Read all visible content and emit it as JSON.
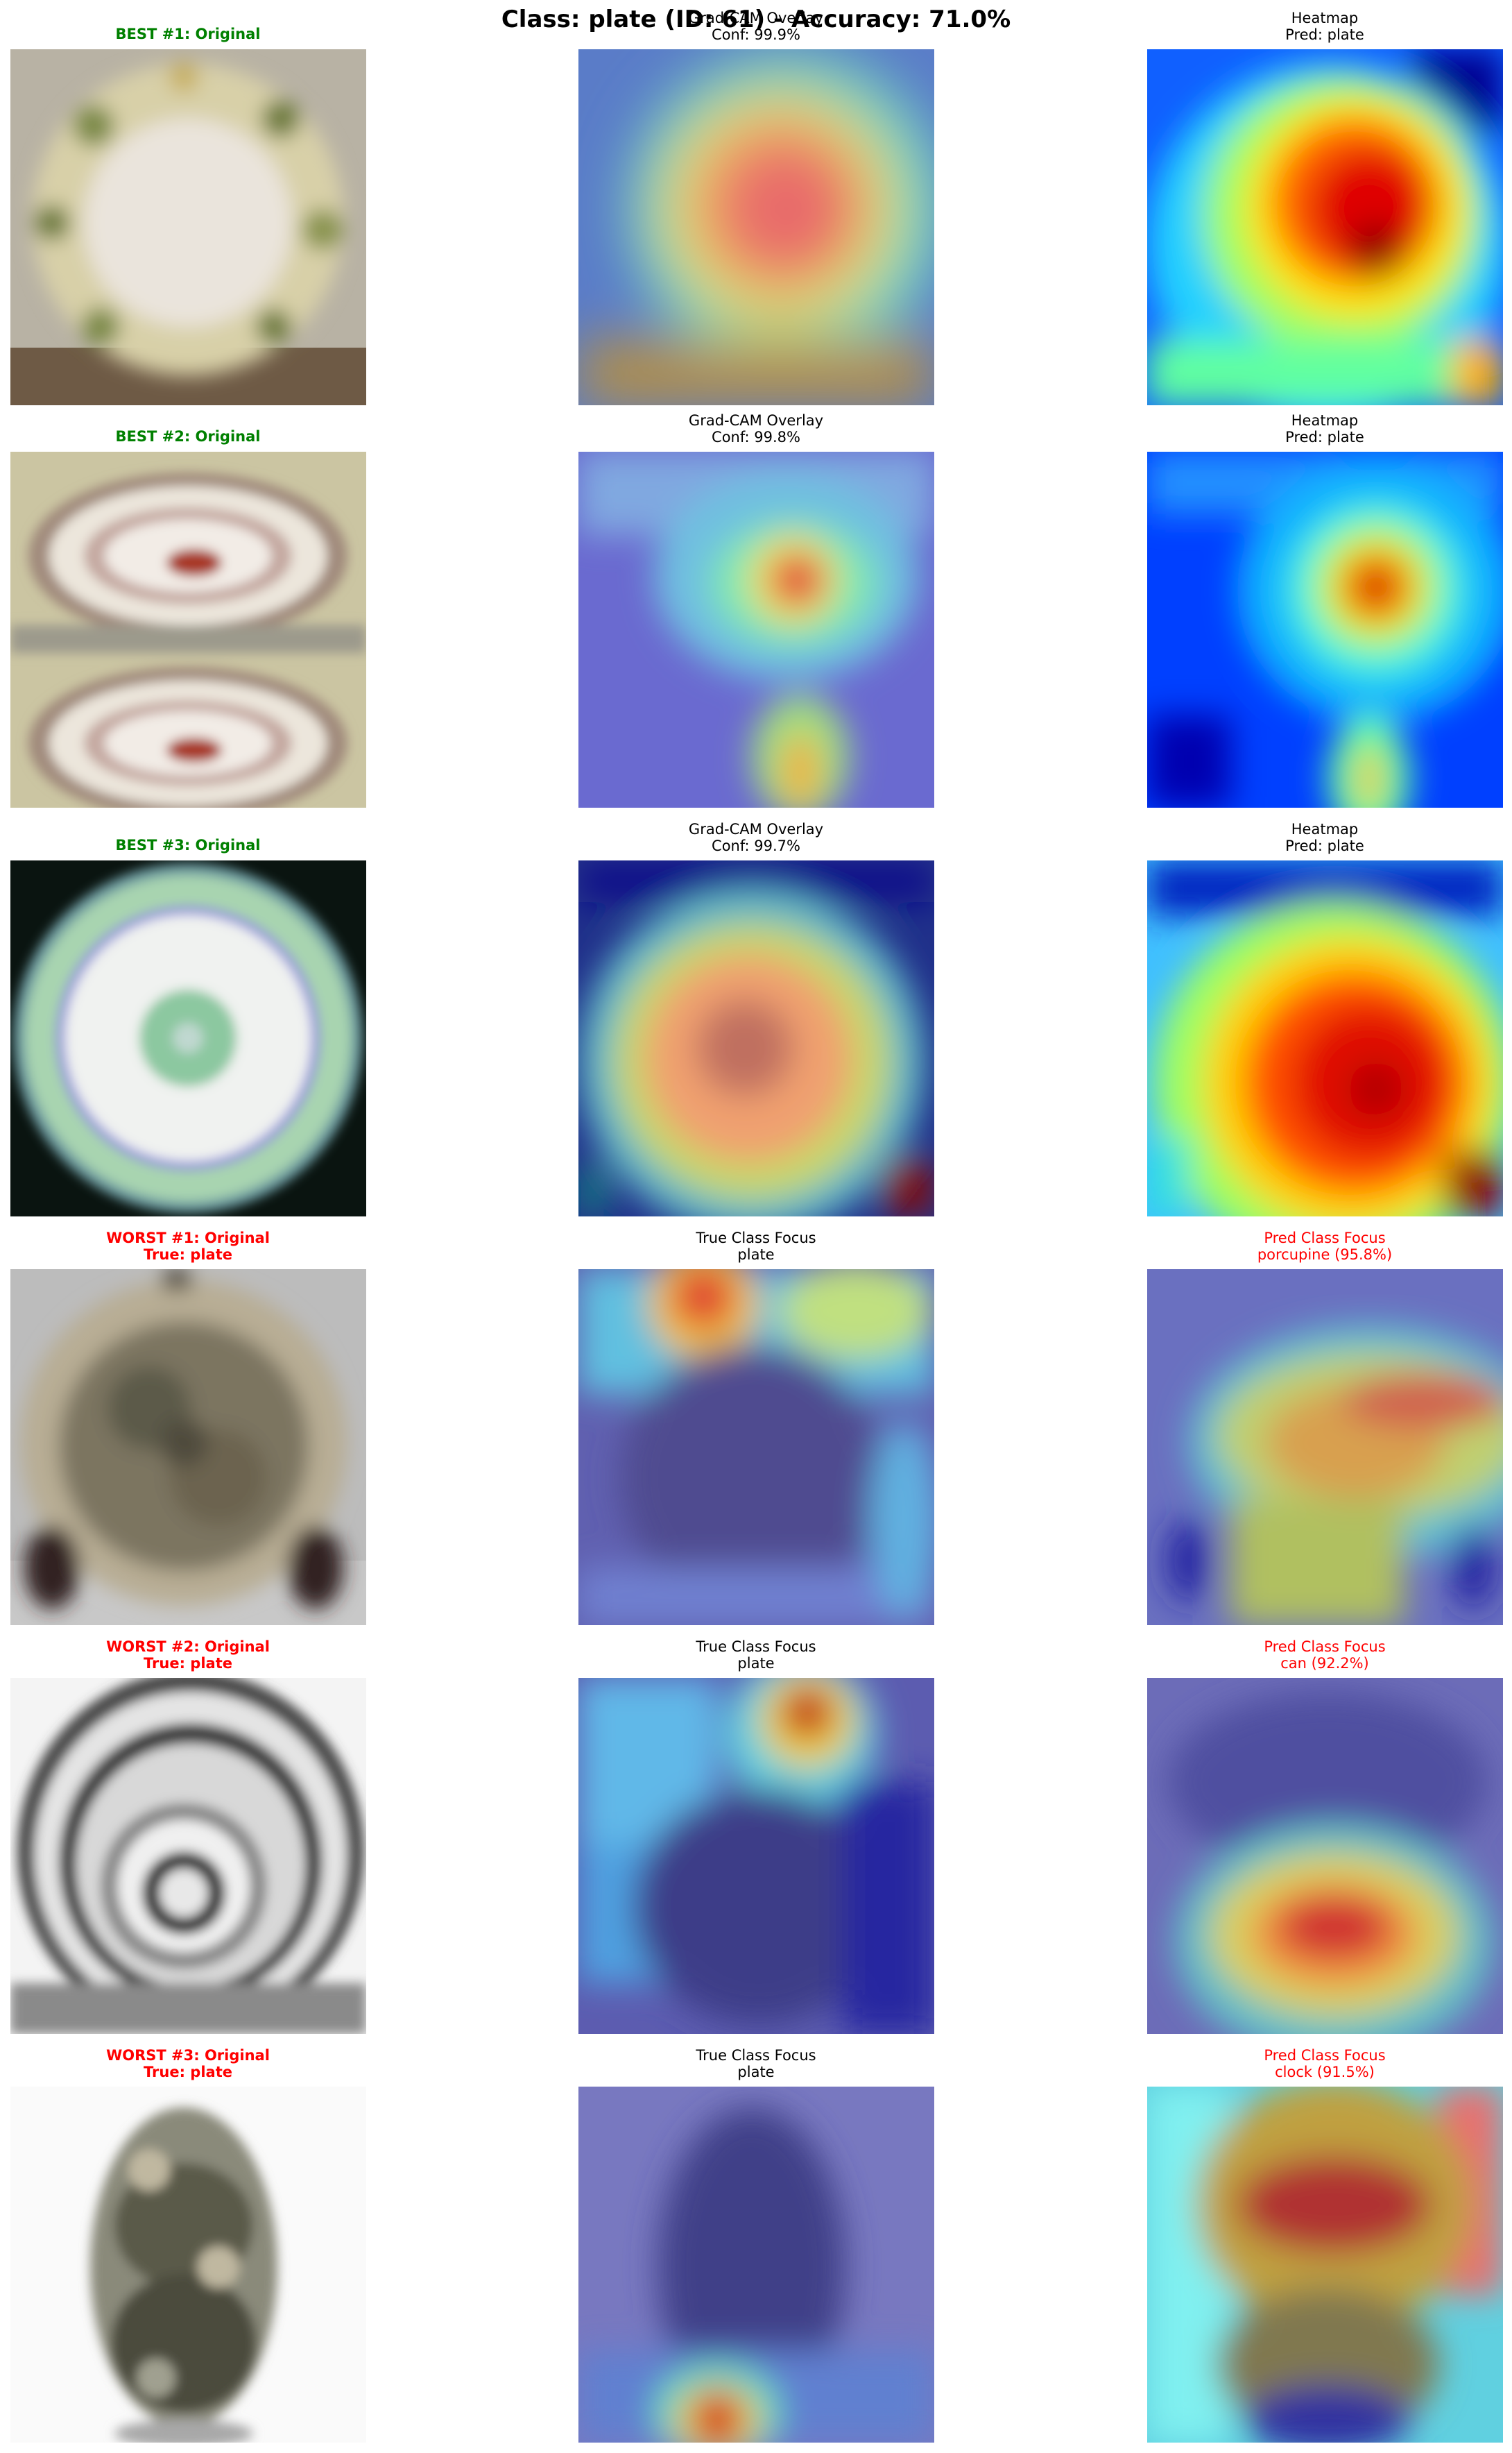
{
  "suptitle": "Class: plate (ID: 61) - Accuracy: 71.0%",
  "colors": {
    "best_title": "#008000",
    "worst_title": "#ff0000",
    "pred_title": "#ff0000"
  },
  "rows": [
    {
      "original": {
        "line1": "BEST #1: Original",
        "line2": ""
      },
      "middle": {
        "line1": "Grad-CAM Overlay",
        "line2": "Conf: 99.9%"
      },
      "right": {
        "line1": "Heatmap",
        "line2": "Pred: plate"
      }
    },
    {
      "original": {
        "line1": "BEST #2: Original",
        "line2": ""
      },
      "middle": {
        "line1": "Grad-CAM Overlay",
        "line2": "Conf: 99.8%"
      },
      "right": {
        "line1": "Heatmap",
        "line2": "Pred: plate"
      }
    },
    {
      "original": {
        "line1": "BEST #3: Original",
        "line2": ""
      },
      "middle": {
        "line1": "Grad-CAM Overlay",
        "line2": "Conf: 99.7%"
      },
      "right": {
        "line1": "Heatmap",
        "line2": "Pred: plate"
      }
    },
    {
      "original": {
        "line1": "WORST #1: Original",
        "line2": "True: plate"
      },
      "middle": {
        "line1": "True Class Focus",
        "line2": "plate"
      },
      "right": {
        "line1": "Pred Class Focus",
        "line2": "porcupine (95.8%)"
      }
    },
    {
      "original": {
        "line1": "WORST #2: Original",
        "line2": "True: plate"
      },
      "middle": {
        "line1": "True Class Focus",
        "line2": "plate"
      },
      "right": {
        "line1": "Pred Class Focus",
        "line2": "can (92.2%)"
      }
    },
    {
      "original": {
        "line1": "WORST #3: Original",
        "line2": "True: plate"
      },
      "middle": {
        "line1": "True Class Focus",
        "line2": "plate"
      },
      "right": {
        "line1": "Pred Class Focus",
        "line2": "clock (91.5%)"
      }
    }
  ]
}
